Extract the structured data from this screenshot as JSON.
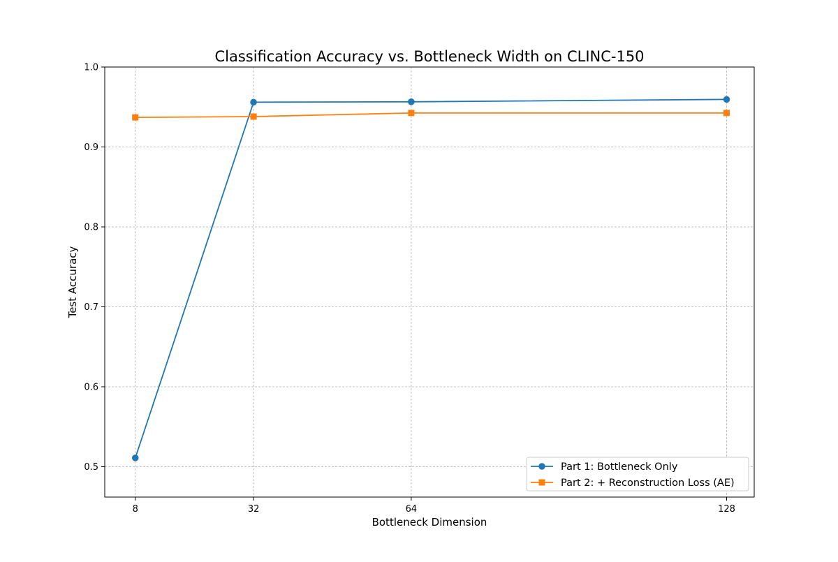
{
  "chart_data": {
    "type": "line",
    "title": "Classification Accuracy vs. Bottleneck Width on CLINC-150",
    "xlabel": "Bottleneck Dimension",
    "ylabel": "Test Accuracy",
    "x": [
      8,
      32,
      64,
      128
    ],
    "x_tick_labels": [
      "8",
      "32",
      "64",
      "128"
    ],
    "xlim": [
      1.8,
      133.6
    ],
    "ylim": [
      0.462,
      1.0
    ],
    "y_ticks": [
      0.5,
      0.6,
      0.7,
      0.8,
      0.9,
      1.0
    ],
    "y_tick_labels": [
      "0.5",
      "0.6",
      "0.7",
      "0.8",
      "0.9",
      "1.0"
    ],
    "grid": true,
    "legend_position": "bottom-right",
    "series": [
      {
        "name": "Part 1: Bottleneck Only",
        "marker": "circle",
        "color": "#1f77b4",
        "values": [
          0.511,
          0.956,
          0.9565,
          0.9595
        ]
      },
      {
        "name": "Part 2: + Reconstruction Loss (AE)",
        "marker": "square",
        "color": "#ff7f0e",
        "values": [
          0.937,
          0.938,
          0.9425,
          0.9425
        ]
      }
    ]
  }
}
